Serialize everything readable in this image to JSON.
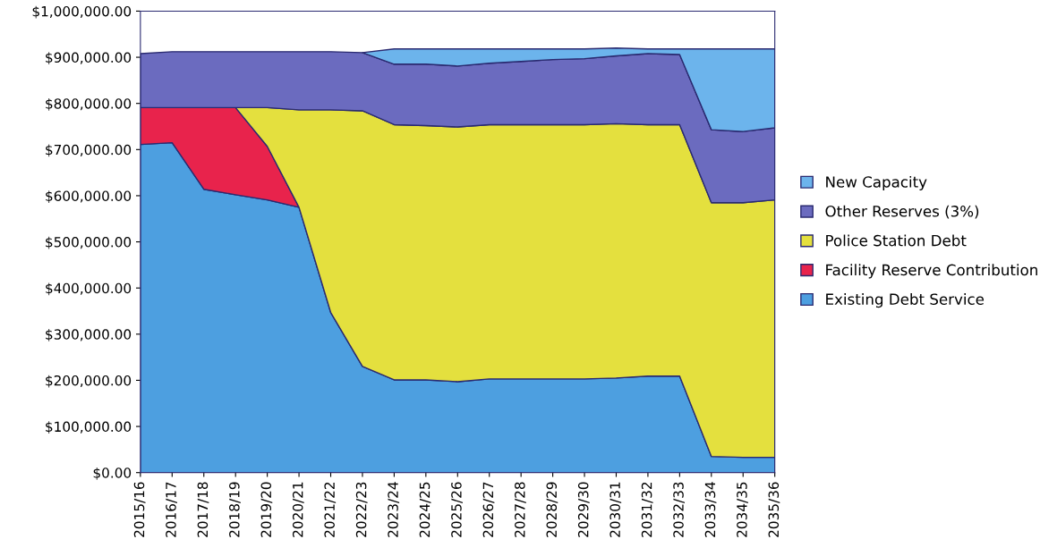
{
  "chart_data": {
    "type": "area",
    "stacked": true,
    "categories": [
      "2015/16",
      "2016/17",
      "2017/18",
      "2018/19",
      "2019/20",
      "2020/21",
      "2021/22",
      "2022/23",
      "2023/24",
      "2024/25",
      "2025/26",
      "2026/27",
      "2027/28",
      "2028/29",
      "2029/30",
      "2030/31",
      "2031/32",
      "2032/33",
      "2033/34",
      "2034/35",
      "2035/36"
    ],
    "series": [
      {
        "name": "Existing Debt Service",
        "color": "#4d9fe0",
        "values": [
          711000,
          715000,
          614000,
          602000,
          591000,
          575000,
          347000,
          230000,
          201000,
          201000,
          197000,
          203000,
          203000,
          203000,
          203000,
          205000,
          209000,
          209000,
          35000,
          33000,
          33000
        ]
      },
      {
        "name": "Facility Reserve Contribution",
        "color": "#e8234c",
        "values": [
          80000,
          76000,
          177000,
          189000,
          116000,
          0,
          null,
          null,
          null,
          null,
          null,
          null,
          null,
          null,
          null,
          null,
          null,
          null,
          null,
          null,
          null
        ]
      },
      {
        "name": "Police Station Debt",
        "color": "#e4e03e",
        "values": [
          null,
          null,
          null,
          0,
          84000,
          211000,
          439000,
          554000,
          553000,
          551000,
          552000,
          551000,
          551000,
          551000,
          551000,
          551000,
          545000,
          545000,
          550000,
          552000,
          558000
        ]
      },
      {
        "name": "Other Reserves (3%)",
        "color": "#6b6bbf",
        "values": [
          117000,
          121000,
          121000,
          121000,
          121000,
          126000,
          126000,
          126000,
          131000,
          133000,
          132000,
          133000,
          137000,
          141000,
          143000,
          147000,
          154000,
          152000,
          158000,
          154000,
          156000
        ]
      },
      {
        "name": "New Capacity",
        "color": "#6cb4ec",
        "values": [
          null,
          null,
          null,
          null,
          null,
          null,
          null,
          0,
          33000,
          33000,
          37000,
          31000,
          27000,
          23000,
          21000,
          17000,
          10000,
          12000,
          175000,
          179000,
          171000
        ]
      }
    ],
    "ylim": [
      0,
      1000000
    ],
    "yticks": [
      {
        "value": 0,
        "label": "$0.00"
      },
      {
        "value": 100000,
        "label": "$100,000.00"
      },
      {
        "value": 200000,
        "label": "$200,000.00"
      },
      {
        "value": 300000,
        "label": "$300,000.00"
      },
      {
        "value": 400000,
        "label": "$400,000.00"
      },
      {
        "value": 500000,
        "label": "$500,000.00"
      },
      {
        "value": 600000,
        "label": "$600,000.00"
      },
      {
        "value": 700000,
        "label": "$700,000.00"
      },
      {
        "value": 800000,
        "label": "$800,000.00"
      },
      {
        "value": 900000,
        "label": "$900,000.00"
      },
      {
        "value": 1000000,
        "label": "$1,000,000.00"
      }
    ],
    "legend": "right"
  }
}
